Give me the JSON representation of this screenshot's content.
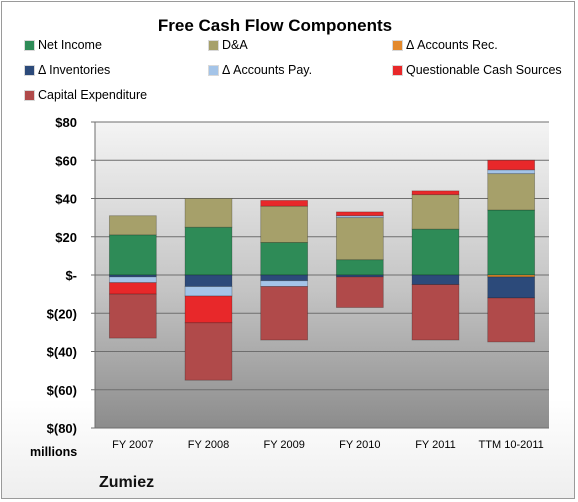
{
  "chart_data": {
    "type": "bar",
    "stacked": true,
    "title": "Free Cash Flow Components",
    "units_label": "millions",
    "company": "Zumiez",
    "categories": [
      "FY 2007",
      "FY 2008",
      "FY 2009",
      "FY 2010",
      "FY 2011",
      "TTM 10-2011"
    ],
    "ylim": [
      -80,
      80
    ],
    "y_ticks": [
      80,
      60,
      40,
      20,
      0,
      -20,
      -40,
      -60,
      -80
    ],
    "y_tick_labels": [
      "$80",
      "$60",
      "$40",
      "$20",
      "$-",
      "$(20)",
      "$(40)",
      "$(60)",
      "$(80)"
    ],
    "grid": true,
    "legend": "top",
    "series": [
      {
        "name": "Net Income",
        "color": "#2e8b57",
        "values": [
          21,
          25,
          17,
          8,
          24,
          34
        ]
      },
      {
        "name": "D&A",
        "color": "#a6a06a",
        "values": [
          10,
          15,
          19,
          22,
          18,
          19
        ]
      },
      {
        "name": "Δ Accounts Rec.",
        "color": "#e3892c",
        "values": [
          0,
          0,
          0,
          0,
          0,
          -1
        ]
      },
      {
        "name": "Δ Inventories",
        "color": "#2c4a7a",
        "values": [
          -1,
          -6,
          -3,
          -1,
          -5,
          -11
        ]
      },
      {
        "name": "Δ Accounts Pay.",
        "color": "#a4c4e8",
        "values": [
          -3,
          -5,
          -3,
          1,
          0,
          2
        ]
      },
      {
        "name": "Questionable Cash Sources",
        "color": "#e8282a",
        "values": [
          -6,
          -14,
          3,
          2,
          2,
          5
        ]
      },
      {
        "name": "Capital Expenditure",
        "color": "#b04a4a",
        "values": [
          -23,
          -30,
          -28,
          -16,
          -29,
          -23
        ]
      }
    ]
  }
}
